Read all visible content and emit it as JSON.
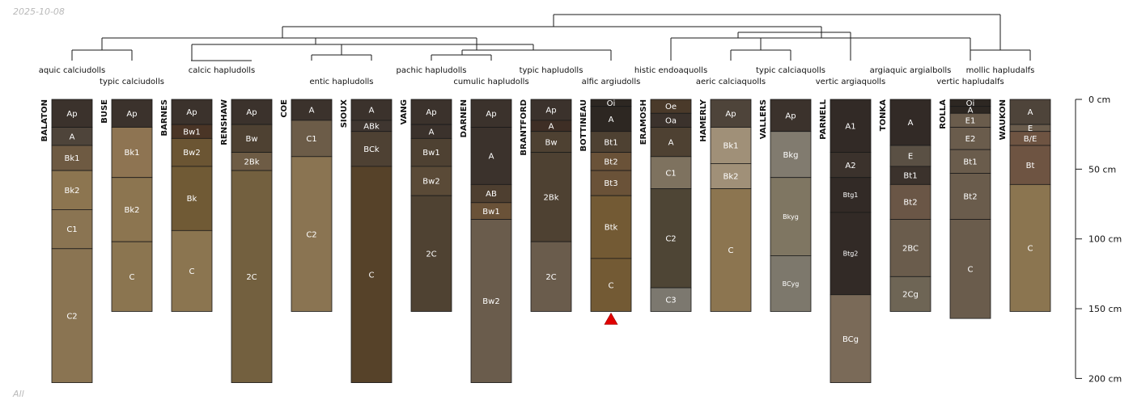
{
  "header": {
    "date": "2025-10-08"
  },
  "footer": {
    "label": "All"
  },
  "colors": {
    "line": "#1a1a1a",
    "label_text": "#ffffff",
    "marker": "#e00000"
  },
  "depth_axis": {
    "ticks": [
      0,
      50,
      100,
      150,
      200
    ],
    "unit": "cm",
    "max_depth": 200
  },
  "taxa": [
    {
      "name": "aquic calciudolls"
    },
    {
      "name": "typic calciudolls"
    },
    {
      "name": "calcic hapludolls"
    },
    {
      "name": "entic hapludolls"
    },
    {
      "name": "pachic hapludolls"
    },
    {
      "name": "cumulic hapludolls"
    },
    {
      "name": "typic hapludolls"
    },
    {
      "name": "alfic argiudolls"
    },
    {
      "name": "histic endoaquolls"
    },
    {
      "name": "aeric calciaquolls"
    },
    {
      "name": "typic calciaquolls"
    },
    {
      "name": "vertic argiaquolls"
    },
    {
      "name": "argiaquic argialbolls"
    },
    {
      "name": "vertic hapludalfs"
    },
    {
      "name": "mollic hapludalfs"
    }
  ],
  "profiles": [
    {
      "name": "BALATON",
      "horizons": [
        {
          "name": "Ap",
          "top": 0,
          "bottom": 20,
          "color": "#3b322c"
        },
        {
          "name": "A",
          "top": 20,
          "bottom": 33,
          "color": "#4e443a"
        },
        {
          "name": "Bk1",
          "top": 33,
          "bottom": 51,
          "color": "#6e5a42"
        },
        {
          "name": "Bk2",
          "top": 51,
          "bottom": 79,
          "color": "#8c7550"
        },
        {
          "name": "C1",
          "top": 79,
          "bottom": 107,
          "color": "#8a7452"
        },
        {
          "name": "C2",
          "top": 107,
          "bottom": 203,
          "color": "#8a7452"
        }
      ]
    },
    {
      "name": "BUSE",
      "horizons": [
        {
          "name": "Ap",
          "top": 0,
          "bottom": 20,
          "color": "#3b322c"
        },
        {
          "name": "Bk1",
          "top": 20,
          "bottom": 56,
          "color": "#8e7452"
        },
        {
          "name": "Bk2",
          "top": 56,
          "bottom": 102,
          "color": "#8c7550"
        },
        {
          "name": "C",
          "top": 102,
          "bottom": 152,
          "color": "#8b7550"
        }
      ]
    },
    {
      "name": "BARNES",
      "horizons": [
        {
          "name": "Ap",
          "top": 0,
          "bottom": 18,
          "color": "#3b322c"
        },
        {
          "name": "Bw1",
          "top": 18,
          "bottom": 28,
          "color": "#4a3526"
        },
        {
          "name": "Bw2",
          "top": 28,
          "bottom": 48,
          "color": "#6b5533"
        },
        {
          "name": "Bk",
          "top": 48,
          "bottom": 94,
          "color": "#705a35"
        },
        {
          "name": "C",
          "top": 94,
          "bottom": 152,
          "color": "#8b7550"
        }
      ]
    },
    {
      "name": "RENSHAW",
      "horizons": [
        {
          "name": "Ap",
          "top": 0,
          "bottom": 18,
          "color": "#3b322c"
        },
        {
          "name": "Bw",
          "top": 18,
          "bottom": 38,
          "color": "#4e4132"
        },
        {
          "name": "2Bk",
          "top": 38,
          "bottom": 51,
          "color": "#6e5c45"
        },
        {
          "name": "2C",
          "top": 51,
          "bottom": 203,
          "color": "#73603f"
        }
      ]
    },
    {
      "name": "COE",
      "horizons": [
        {
          "name": "A",
          "top": 0,
          "bottom": 15,
          "color": "#3b322c"
        },
        {
          "name": "C1",
          "top": 15,
          "bottom": 41,
          "color": "#6c5c48"
        },
        {
          "name": "C2",
          "top": 41,
          "bottom": 152,
          "color": "#8a7452"
        }
      ]
    },
    {
      "name": "SIOUX",
      "horizons": [
        {
          "name": "A",
          "top": 0,
          "bottom": 15,
          "color": "#3b322c"
        },
        {
          "name": "ABk",
          "top": 15,
          "bottom": 23,
          "color": "#3f3630"
        },
        {
          "name": "BCk",
          "top": 23,
          "bottom": 48,
          "color": "#4e4133"
        },
        {
          "name": "C",
          "top": 48,
          "bottom": 203,
          "color": "#564229"
        }
      ]
    },
    {
      "name": "VANG",
      "horizons": [
        {
          "name": "Ap",
          "top": 0,
          "bottom": 18,
          "color": "#3b322c"
        },
        {
          "name": "A",
          "top": 18,
          "bottom": 28,
          "color": "#3b322c"
        },
        {
          "name": "Bw1",
          "top": 28,
          "bottom": 48,
          "color": "#4e4132"
        },
        {
          "name": "Bw2",
          "top": 48,
          "bottom": 69,
          "color": "#5a4a37"
        },
        {
          "name": "2C",
          "top": 69,
          "bottom": 152,
          "color": "#4f4232"
        }
      ]
    },
    {
      "name": "DARNEN",
      "horizons": [
        {
          "name": "Ap",
          "top": 0,
          "bottom": 20,
          "color": "#3b322c"
        },
        {
          "name": "A",
          "top": 20,
          "bottom": 61,
          "color": "#3b322c"
        },
        {
          "name": "AB",
          "top": 61,
          "bottom": 74,
          "color": "#4e3f30"
        },
        {
          "name": "Bw1",
          "top": 74,
          "bottom": 86,
          "color": "#6a5238"
        },
        {
          "name": "Bw2",
          "top": 86,
          "bottom": 203,
          "color": "#6a5c4c"
        }
      ]
    },
    {
      "name": "BRANTFORD",
      "horizons": [
        {
          "name": "Ap",
          "top": 0,
          "bottom": 15,
          "color": "#3b322c"
        },
        {
          "name": "A",
          "top": 15,
          "bottom": 23,
          "color": "#3e2e25"
        },
        {
          "name": "Bw",
          "top": 23,
          "bottom": 38,
          "color": "#4e4132"
        },
        {
          "name": "2Bk",
          "top": 38,
          "bottom": 102,
          "color": "#4e4132"
        },
        {
          "name": "2C",
          "top": 102,
          "bottom": 152,
          "color": "#6a5c4c"
        }
      ]
    },
    {
      "name": "BOTTINEAU",
      "marker": true,
      "horizons": [
        {
          "name": "Oi",
          "top": 0,
          "bottom": 5,
          "color": "#2d2722"
        },
        {
          "name": "A",
          "top": 5,
          "bottom": 23,
          "color": "#2d2722"
        },
        {
          "name": "Bt1",
          "top": 23,
          "bottom": 38,
          "color": "#4e4132"
        },
        {
          "name": "Bt2",
          "top": 38,
          "bottom": 51,
          "color": "#6a5238"
        },
        {
          "name": "Bt3",
          "top": 51,
          "bottom": 69,
          "color": "#6a5238"
        },
        {
          "name": "Btk",
          "top": 69,
          "bottom": 114,
          "color": "#735a34"
        },
        {
          "name": "C",
          "top": 114,
          "bottom": 152,
          "color": "#735a34"
        }
      ]
    },
    {
      "name": "ERAMOSH",
      "horizons": [
        {
          "name": "Oe",
          "top": 0,
          "bottom": 10,
          "color": "#4a3a2a"
        },
        {
          "name": "Oa",
          "top": 10,
          "bottom": 20,
          "color": "#3b322c"
        },
        {
          "name": "A",
          "top": 20,
          "bottom": 41,
          "color": "#4e4132"
        },
        {
          "name": "C1",
          "top": 41,
          "bottom": 64,
          "color": "#7e725f"
        },
        {
          "name": "C2",
          "top": 64,
          "bottom": 135,
          "color": "#4e4535"
        },
        {
          "name": "C3",
          "top": 135,
          "bottom": 152,
          "color": "#7c786f"
        }
      ]
    },
    {
      "name": "HAMERLY",
      "horizons": [
        {
          "name": "Ap",
          "top": 0,
          "bottom": 20,
          "color": "#4e443a"
        },
        {
          "name": "Bk1",
          "top": 20,
          "bottom": 46,
          "color": "#a09078"
        },
        {
          "name": "Bk2",
          "top": 46,
          "bottom": 64,
          "color": "#a09078"
        },
        {
          "name": "C",
          "top": 64,
          "bottom": 152,
          "color": "#8c7550"
        }
      ]
    },
    {
      "name": "VALLERS",
      "horizons": [
        {
          "name": "Ap",
          "top": 0,
          "bottom": 23,
          "color": "#3b322c"
        },
        {
          "name": "Bkg",
          "top": 23,
          "bottom": 56,
          "color": "#817b6f"
        },
        {
          "name": "Bkyg",
          "top": 56,
          "bottom": 112,
          "color": "#7f7662"
        },
        {
          "name": "BCyg",
          "top": 112,
          "bottom": 152,
          "color": "#7d786c"
        }
      ]
    },
    {
      "name": "PARNELL",
      "horizons": [
        {
          "name": "A1",
          "top": 0,
          "bottom": 38,
          "color": "#322a26"
        },
        {
          "name": "A2",
          "top": 38,
          "bottom": 56,
          "color": "#3b322c"
        },
        {
          "name": "Btg1",
          "top": 56,
          "bottom": 81,
          "color": "#322a26"
        },
        {
          "name": "Btg2",
          "top": 81,
          "bottom": 140,
          "color": "#322a26"
        },
        {
          "name": "BCg",
          "top": 140,
          "bottom": 203,
          "color": "#7a6a58"
        }
      ]
    },
    {
      "name": "TONKA",
      "horizons": [
        {
          "name": "A",
          "top": 0,
          "bottom": 33,
          "color": "#322a26"
        },
        {
          "name": "E",
          "top": 33,
          "bottom": 48,
          "color": "#5a5044"
        },
        {
          "name": "Bt1",
          "top": 48,
          "bottom": 61,
          "color": "#3b322c"
        },
        {
          "name": "Bt2",
          "top": 61,
          "bottom": 86,
          "color": "#6a5646"
        },
        {
          "name": "2BC",
          "top": 86,
          "bottom": 127,
          "color": "#6a5c4c"
        },
        {
          "name": "2Cg",
          "top": 127,
          "bottom": 152,
          "color": "#6e6555"
        }
      ]
    },
    {
      "name": "ROLLA",
      "horizons": [
        {
          "name": "Oi",
          "top": 0,
          "bottom": 5,
          "color": "#2d2722"
        },
        {
          "name": "A",
          "top": 5,
          "bottom": 10,
          "color": "#2d2722"
        },
        {
          "name": "E1",
          "top": 10,
          "bottom": 20,
          "color": "#6a5c4c"
        },
        {
          "name": "E2",
          "top": 20,
          "bottom": 36,
          "color": "#6a5c4c"
        },
        {
          "name": "Bt1",
          "top": 36,
          "bottom": 53,
          "color": "#6a5c4c"
        },
        {
          "name": "Bt2",
          "top": 53,
          "bottom": 86,
          "color": "#6a5c4c"
        },
        {
          "name": "C",
          "top": 86,
          "bottom": 157,
          "color": "#6a5c4c"
        }
      ]
    },
    {
      "name": "WAUKON",
      "horizons": [
        {
          "name": "A",
          "top": 0,
          "bottom": 18,
          "color": "#4e443a"
        },
        {
          "name": "E",
          "top": 18,
          "bottom": 23,
          "color": "#6a5c4c"
        },
        {
          "name": "B/E",
          "top": 23,
          "bottom": 33,
          "color": "#6e5442"
        },
        {
          "name": "Bt",
          "top": 33,
          "bottom": 61,
          "color": "#6e5442"
        },
        {
          "name": "C",
          "top": 61,
          "bottom": 152,
          "color": "#8b7550"
        }
      ]
    }
  ]
}
